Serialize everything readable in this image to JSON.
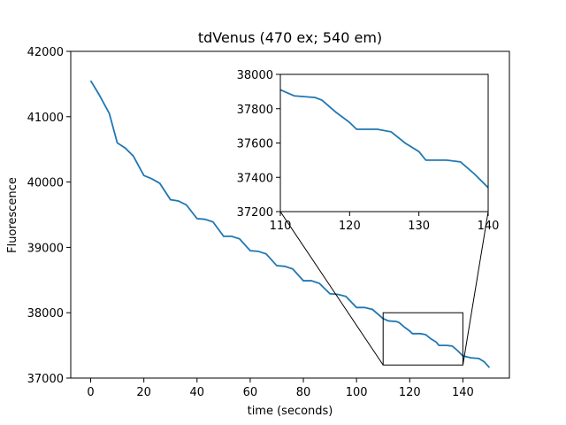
{
  "chart_data": {
    "type": "line",
    "title": "tdVenus (470 ex; 540 em)",
    "x_label": "time (seconds)",
    "y_label": "Fluorescence",
    "x": [
      0,
      3,
      7,
      10,
      13,
      16,
      20,
      23,
      26,
      30,
      33,
      36,
      40,
      43,
      46,
      50,
      53,
      56,
      60,
      63,
      66,
      70,
      73,
      76,
      80,
      83,
      86,
      90,
      93,
      96,
      100,
      103,
      106,
      110,
      112,
      115,
      116,
      118,
      120,
      121,
      124,
      126,
      128,
      130,
      131,
      134,
      136,
      138,
      140,
      143,
      146,
      148,
      150
    ],
    "series": [
      {
        "color": "#1f77b4",
        "values": [
          41550,
          41350,
          41050,
          40600,
          40520,
          40400,
          40100,
          40050,
          39980,
          39730,
          39710,
          39650,
          39440,
          39430,
          39390,
          39170,
          39170,
          39130,
          38950,
          38940,
          38900,
          38720,
          38710,
          38670,
          38490,
          38490,
          38450,
          38290,
          38280,
          38250,
          38080,
          38080,
          38050,
          37910,
          37875,
          37865,
          37850,
          37780,
          37720,
          37680,
          37680,
          37665,
          37600,
          37550,
          37500,
          37500,
          37490,
          37420,
          37340,
          37310,
          37300,
          37250,
          37160
        ]
      }
    ],
    "xlim": [
      -7.5,
      157.5
    ],
    "ylim": [
      37000,
      42000
    ],
    "xticks": [
      0,
      20,
      40,
      60,
      80,
      100,
      120,
      140
    ],
    "yticks": [
      37000,
      38000,
      39000,
      40000,
      41000,
      42000
    ],
    "inset": {
      "xlim": [
        110,
        140
      ],
      "ylim": [
        37200,
        38000
      ],
      "xticks": [
        110,
        120,
        130,
        140
      ],
      "yticks": [
        37200,
        37400,
        37600,
        37800,
        38000
      ]
    }
  }
}
